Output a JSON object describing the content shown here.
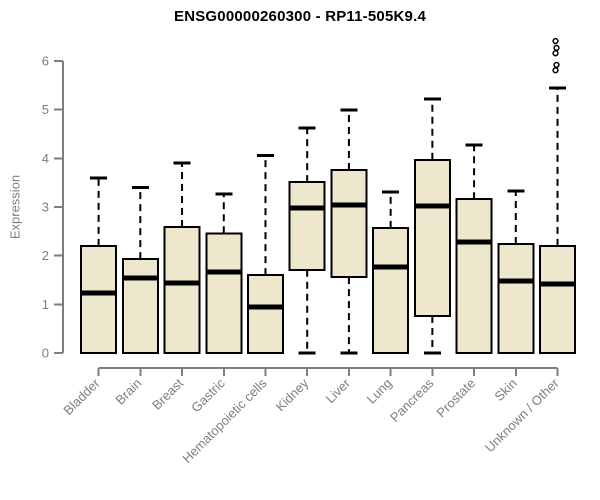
{
  "title": "ENSG00000260300 - RP11-505K9.4",
  "chart_data": {
    "type": "boxplot",
    "title": "ENSG00000260300 - RP11-505K9.4",
    "xlabel": "",
    "ylabel": "Expression",
    "ylim": [
      0,
      6.6
    ],
    "y_ticks": [
      0,
      1,
      2,
      3,
      4,
      5,
      6
    ],
    "grid": false,
    "legend": "none",
    "categories": [
      "Bladder",
      "Brain",
      "Breast",
      "Gastric",
      "Hematopoietic cells",
      "Kidney",
      "Liver",
      "Lung",
      "Pancreas",
      "Prostate",
      "Skin",
      "Unknown / Other"
    ],
    "boxes": [
      {
        "label": "Bladder",
        "min": 0,
        "q1": 0,
        "median": 1.23,
        "q3": 2.2,
        "max": 3.6,
        "outliers": []
      },
      {
        "label": "Brain",
        "min": 0,
        "q1": 0,
        "median": 1.54,
        "q3": 1.93,
        "max": 3.4,
        "outliers": []
      },
      {
        "label": "Breast",
        "min": 0,
        "q1": 0,
        "median": 1.44,
        "q3": 2.59,
        "max": 3.9,
        "outliers": []
      },
      {
        "label": "Gastric",
        "min": 0,
        "q1": 0,
        "median": 1.66,
        "q3": 2.46,
        "max": 3.27,
        "outliers": []
      },
      {
        "label": "Hematopoietic cells",
        "min": 0,
        "q1": 0,
        "median": 0.95,
        "q3": 1.6,
        "max": 4.06,
        "outliers": []
      },
      {
        "label": "Kidney",
        "min": 0,
        "q1": 1.71,
        "median": 2.98,
        "q3": 3.51,
        "max": 4.62,
        "outliers": []
      },
      {
        "label": "Liver",
        "min": 0,
        "q1": 1.56,
        "median": 3.04,
        "q3": 3.76,
        "max": 4.99,
        "outliers": []
      },
      {
        "label": "Lung",
        "min": 0,
        "q1": 0,
        "median": 1.77,
        "q3": 2.57,
        "max": 3.31,
        "outliers": []
      },
      {
        "label": "Pancreas",
        "min": 0,
        "q1": 0.76,
        "median": 3.02,
        "q3": 3.97,
        "max": 5.22,
        "outliers": []
      },
      {
        "label": "Prostate",
        "min": 0,
        "q1": 0,
        "median": 2.28,
        "q3": 3.16,
        "max": 4.27,
        "outliers": []
      },
      {
        "label": "Skin",
        "min": 0,
        "q1": 0,
        "median": 1.48,
        "q3": 2.24,
        "max": 3.33,
        "outliers": []
      },
      {
        "label": "Unknown / Other",
        "min": 0,
        "q1": 0,
        "median": 1.42,
        "q3": 2.2,
        "max": 5.45,
        "outliers": [
          6.41,
          6.27,
          6.16,
          5.92,
          5.81
        ]
      }
    ],
    "colors": {
      "box_fill": "#EDE8CD",
      "box_stroke": "#000000",
      "median": "#000000",
      "whisker": "#000000",
      "outlier_stroke": "#000000",
      "axis": "#7E7E7E",
      "tick_label": "#7E7E7E",
      "title": "#000000"
    }
  }
}
